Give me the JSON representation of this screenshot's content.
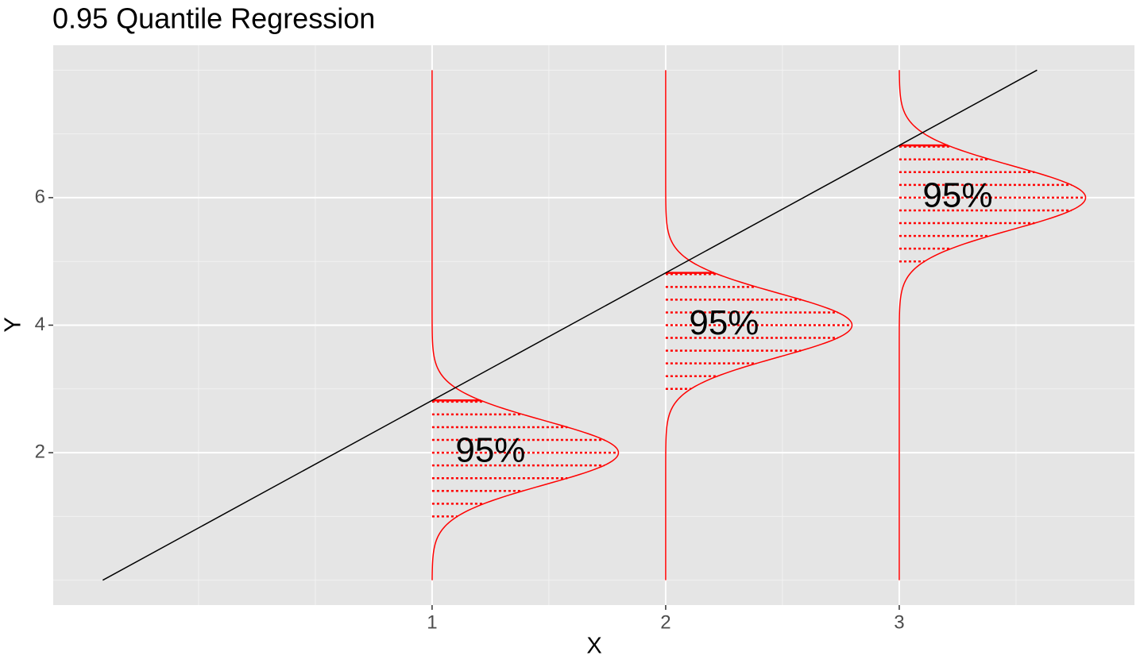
{
  "chart_data": {
    "type": "quantile",
    "title": "0.95 Quantile Regression",
    "x_label": "X",
    "y_label": "Y",
    "xlim": [
      -0.622,
      4.007
    ],
    "ylim": [
      -0.39,
      8.39
    ],
    "xticks": [
      1,
      2,
      3
    ],
    "yticks": [
      2,
      4,
      6
    ],
    "x_minor_grid": [
      0,
      0.5,
      1.5,
      2.5,
      3.5
    ],
    "y_minor_grid": [
      0,
      1,
      3,
      5,
      7,
      8
    ],
    "grid": true,
    "line": {
      "color": "#000000",
      "x": [
        -0.41,
        3.59
      ],
      "y": [
        0,
        8
      ]
    },
    "color": "#ff0000",
    "curve_range": [
      0,
      8
    ],
    "hatch_step": 0.2,
    "distributions": [
      {
        "x": 1,
        "mean": 2,
        "sd": 0.5,
        "quantile": 2.82,
        "hatch_start": 1.0
      },
      {
        "x": 2,
        "mean": 4,
        "sd": 0.5,
        "quantile": 4.82,
        "hatch_start": 3.0
      },
      {
        "x": 3,
        "mean": 6,
        "sd": 0.5,
        "quantile": 6.82,
        "hatch_start": 5.0
      }
    ],
    "annotations": [
      {
        "text": "95%",
        "x": 1.25,
        "y": 2
      },
      {
        "text": "95%",
        "x": 2.25,
        "y": 4
      },
      {
        "text": "95%",
        "x": 3.25,
        "y": 6
      }
    ]
  }
}
